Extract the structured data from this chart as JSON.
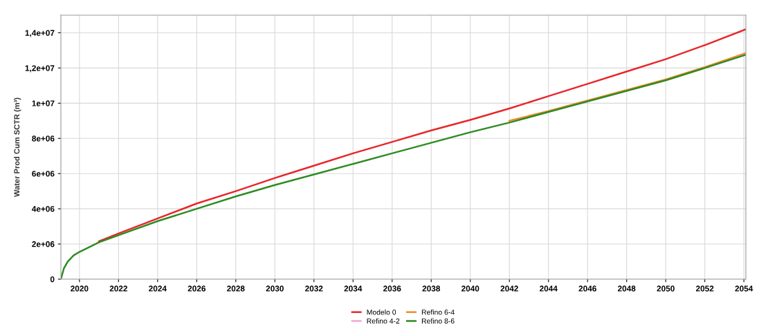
{
  "chart_data": {
    "type": "line",
    "ylabel": "Water Prod Cum SCTR (m³)",
    "x": [
      2019.05,
      2019.2,
      2019.4,
      2019.7,
      2020,
      2021,
      2022,
      2024,
      2026,
      2028,
      2030,
      2032,
      2034,
      2036,
      2038,
      2040,
      2042,
      2044,
      2046,
      2048,
      2050,
      2052,
      2054.1
    ],
    "series": [
      {
        "name": "Modelo 0",
        "color": "#e8262a",
        "values": [
          null,
          null,
          null,
          null,
          null,
          2150000,
          2600000,
          3450000,
          4300000,
          5000000,
          5750000,
          6450000,
          7150000,
          7800000,
          8450000,
          9050000,
          9700000,
          10400000,
          11100000,
          11800000,
          12500000,
          13300000,
          14200000
        ]
      },
      {
        "name": "Refino 4-2",
        "color": "#f4a6d0",
        "values": [
          null,
          null,
          null,
          null,
          null,
          null,
          null,
          null,
          null,
          null,
          null,
          null,
          null,
          null,
          null,
          null,
          null,
          null,
          null,
          null,
          null,
          null,
          null
        ]
      },
      {
        "name": "Refino 6-4",
        "color": "#f08a2c",
        "values": [
          null,
          null,
          null,
          null,
          null,
          null,
          null,
          null,
          null,
          null,
          null,
          null,
          null,
          null,
          null,
          null,
          9000000,
          9550000,
          10150000,
          10750000,
          11350000,
          12050000,
          12850000
        ]
      },
      {
        "name": "Refino 8-6",
        "color": "#2e8b22",
        "values": [
          0,
          600000,
          1000000,
          1350000,
          1550000,
          2100000,
          2500000,
          3300000,
          4000000,
          4700000,
          5350000,
          5950000,
          6550000,
          7150000,
          7750000,
          8350000,
          8900000,
          9500000,
          10100000,
          10700000,
          11300000,
          12000000,
          12750000
        ]
      }
    ],
    "xlim": [
      2019.05,
      2054.1
    ],
    "xticks": [
      2020,
      2022,
      2024,
      2026,
      2028,
      2030,
      2032,
      2034,
      2036,
      2038,
      2040,
      2042,
      2044,
      2046,
      2048,
      2050,
      2052,
      2054
    ],
    "ylim": [
      0,
      15000000
    ],
    "yticks": [
      0,
      {
        "value": 2000000,
        "label": "2e+06"
      },
      {
        "value": 4000000,
        "label": "4e+06"
      },
      {
        "value": 6000000,
        "label": "6e+06"
      },
      {
        "value": 8000000,
        "label": "8e+06"
      },
      {
        "value": 10000000,
        "label": "1e+07"
      },
      {
        "value": 12000000,
        "label": "1,2e+07"
      },
      {
        "value": 14000000,
        "label": "1,4e+07"
      }
    ],
    "grid": true,
    "legend": "bottom",
    "marker": "none",
    "line_style": "solid"
  }
}
